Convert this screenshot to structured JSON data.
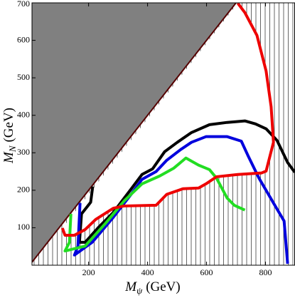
{
  "chart_data": {
    "type": "line",
    "xlabel": {
      "symbol": "M",
      "subscript": "ψ",
      "unit": "(GeV)"
    },
    "ylabel": {
      "symbol": "M",
      "subscript": "N",
      "unit": "(GeV)"
    },
    "xlim": [
      8,
      900
    ],
    "ylim": [
      0,
      700
    ],
    "xticks": [
      200,
      400,
      600,
      800
    ],
    "yticks": [
      100,
      200,
      300,
      400,
      500,
      600,
      700
    ],
    "excluded_fill": "#808080",
    "series": [
      {
        "color": "#000000",
        "x": [
          214,
          207,
          176,
          169,
          188,
          236,
          284,
          345,
          381,
          417,
          458,
          501,
          549,
          610,
          670,
          730,
          766,
          802,
          839,
          875,
          899
        ],
        "values": [
          210,
          168,
          137,
          61,
          61,
          103,
          141,
          204,
          242,
          257,
          303,
          328,
          354,
          375,
          381,
          385,
          377,
          364,
          333,
          274,
          248
        ]
      },
      {
        "color": "#0000dd",
        "x": [
          171,
          164,
          152,
          212,
          284,
          345,
          381,
          429,
          465,
          513,
          549,
          598,
          670,
          718,
          742,
          778,
          827,
          863,
          875
        ],
        "values": [
          166,
          51,
          27,
          61,
          128,
          190,
          229,
          250,
          280,
          309,
          328,
          343,
          343,
          331,
          290,
          232,
          166,
          118,
          4
        ]
      },
      {
        "color": "#22dd22",
        "x": [
          140,
          135,
          120,
          188,
          260,
          320,
          381,
          441,
          489,
          530,
          573,
          610,
          634,
          670,
          694,
          730
        ],
        "values": [
          137,
          61,
          38,
          51,
          114,
          171,
          217,
          238,
          259,
          286,
          267,
          255,
          232,
          179,
          160,
          147
        ]
      },
      {
        "color": "#ee0000",
        "x": [
          111,
          120,
          152,
          188,
          224,
          284,
          320,
          429,
          465,
          520,
          573,
          598,
          634,
          706,
          786,
          802,
          827,
          819,
          802,
          771,
          730,
          706
        ],
        "values": [
          99,
          80,
          80,
          95,
          122,
          152,
          158,
          160,
          189,
          204,
          206,
          217,
          236,
          242,
          246,
          251,
          328,
          423,
          518,
          613,
          674,
          699
        ]
      }
    ]
  }
}
